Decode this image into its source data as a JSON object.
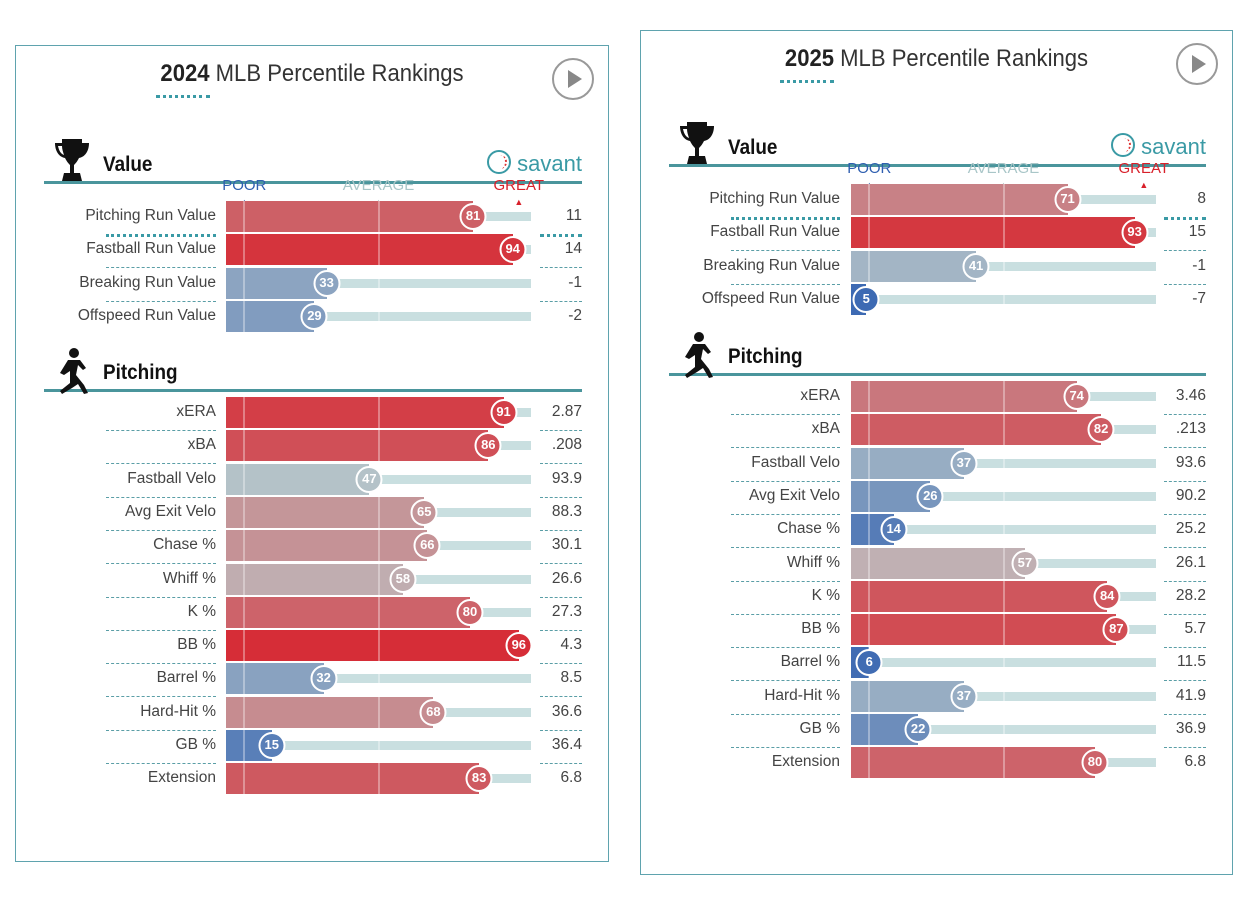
{
  "panels": [
    {
      "year": "2024",
      "title_rest": " MLB Percentile Rankings",
      "sections": [
        {
          "name": "Value",
          "icon": "trophy-icon",
          "savant": "savant",
          "rows": [
            {
              "label": "Pitching Run Value",
              "pct": 81,
              "value": "11"
            },
            {
              "label": "Fastball Run Value",
              "pct": 94,
              "value": "14"
            },
            {
              "label": "Breaking Run Value",
              "pct": 33,
              "value": "-1"
            },
            {
              "label": "Offspeed Run Value",
              "pct": 29,
              "value": "-2"
            }
          ]
        },
        {
          "name": "Pitching",
          "icon": "pitcher-icon",
          "rows": [
            {
              "label": "xERA",
              "pct": 91,
              "value": "2.87"
            },
            {
              "label": "xBA",
              "pct": 86,
              "value": ".208"
            },
            {
              "label": "Fastball Velo",
              "pct": 47,
              "value": "93.9"
            },
            {
              "label": "Avg Exit Velo",
              "pct": 65,
              "value": "88.3"
            },
            {
              "label": "Chase %",
              "pct": 66,
              "value": "30.1"
            },
            {
              "label": "Whiff %",
              "pct": 58,
              "value": "26.6"
            },
            {
              "label": "K %",
              "pct": 80,
              "value": "27.3"
            },
            {
              "label": "BB %",
              "pct": 96,
              "value": "4.3"
            },
            {
              "label": "Barrel %",
              "pct": 32,
              "value": "8.5"
            },
            {
              "label": "Hard-Hit %",
              "pct": 68,
              "value": "36.6"
            },
            {
              "label": "GB %",
              "pct": 15,
              "value": "36.4"
            },
            {
              "label": "Extension",
              "pct": 83,
              "value": "6.8"
            }
          ]
        }
      ]
    },
    {
      "year": "2025",
      "title_rest": " MLB Percentile Rankings",
      "sections": [
        {
          "name": "Value",
          "icon": "trophy-icon",
          "savant": "savant",
          "rows": [
            {
              "label": "Pitching Run Value",
              "pct": 71,
              "value": "8"
            },
            {
              "label": "Fastball Run Value",
              "pct": 93,
              "value": "15"
            },
            {
              "label": "Breaking Run Value",
              "pct": 41,
              "value": "-1"
            },
            {
              "label": "Offspeed Run Value",
              "pct": 5,
              "value": "-7"
            }
          ]
        },
        {
          "name": "Pitching",
          "icon": "pitcher-icon",
          "rows": [
            {
              "label": "xERA",
              "pct": 74,
              "value": "3.46"
            },
            {
              "label": "xBA",
              "pct": 82,
              "value": ".213"
            },
            {
              "label": "Fastball Velo",
              "pct": 37,
              "value": "93.6"
            },
            {
              "label": "Avg Exit Velo",
              "pct": 26,
              "value": "90.2"
            },
            {
              "label": "Chase %",
              "pct": 14,
              "value": "25.2"
            },
            {
              "label": "Whiff %",
              "pct": 57,
              "value": "26.1"
            },
            {
              "label": "K %",
              "pct": 84,
              "value": "28.2"
            },
            {
              "label": "BB %",
              "pct": 87,
              "value": "5.7"
            },
            {
              "label": "Barrel %",
              "pct": 6,
              "value": "11.5"
            },
            {
              "label": "Hard-Hit %",
              "pct": 37,
              "value": "41.9"
            },
            {
              "label": "GB %",
              "pct": 22,
              "value": "36.9"
            },
            {
              "label": "Extension",
              "pct": 80,
              "value": "6.8"
            }
          ]
        }
      ]
    }
  ],
  "legend": {
    "poor": "POOR",
    "average": "AVERAGE",
    "great": "GREAT"
  },
  "colors": {
    "poor": "#2f5fb0",
    "average": "#bcc8c9",
    "great": "#d8202a",
    "accent": "#3a9aa5"
  },
  "chart_data": {
    "type": "bar",
    "xlim": [
      0,
      100
    ],
    "note": "percentile rankings; see panels"
  }
}
